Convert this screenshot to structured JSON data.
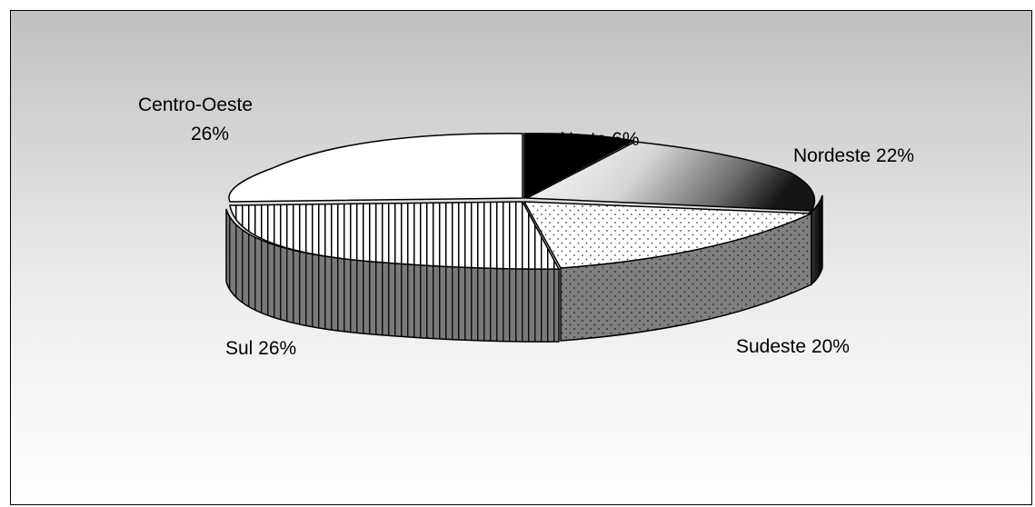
{
  "chart_data": {
    "type": "pie",
    "variant": "3d-exploded-pie",
    "title": "",
    "slices": [
      {
        "name": "Norte",
        "label": "Norte  6%",
        "value": 6
      },
      {
        "name": "Nordeste",
        "label": "Nordeste  22%",
        "value": 22
      },
      {
        "name": "Sudeste",
        "label": "Sudeste 20%",
        "value": 20
      },
      {
        "name": "Sul",
        "label": "Sul 26%",
        "value": 26
      },
      {
        "name": "Centro-Oeste",
        "label_lines": [
          "Centro-Oeste",
          "26%"
        ],
        "value": 26
      }
    ],
    "fills": {
      "norte": "#000000",
      "nordeste": "gradient white-to-black",
      "sudeste": "dotted white / dotted dark gray",
      "sul": "vertical stripes",
      "centro_oeste": "#ffffff"
    },
    "legend": "none"
  }
}
